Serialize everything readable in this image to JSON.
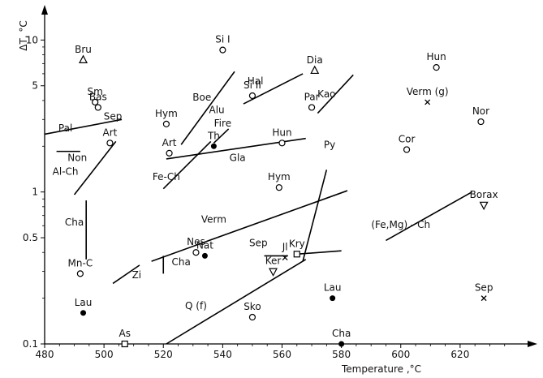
{
  "chart_data": {
    "type": "scatter",
    "xlabel": "Temperature ,°C",
    "ylabel": "ΔT, °C",
    "y_scale": "log",
    "xlim": [
      480,
      640
    ],
    "ylim": [
      0.1,
      13
    ],
    "x_ticks": [
      480,
      500,
      520,
      540,
      560,
      580,
      600,
      620
    ],
    "y_ticks": [
      {
        "value": 0.1,
        "label": "0.1"
      },
      {
        "value": 0.5,
        "label": "0.5"
      },
      {
        "value": 1,
        "label": "1"
      },
      {
        "value": 5,
        "label": "5"
      },
      {
        "value": 10,
        "label": "10"
      }
    ],
    "points": [
      {
        "label": "Bru",
        "x": 493,
        "y": 7.4,
        "marker": "triangle"
      },
      {
        "label": "Sm",
        "x": 497,
        "y": 3.9,
        "marker": "circle-open"
      },
      {
        "label": "Bas",
        "x": 498,
        "y": 3.6,
        "marker": "circle-open"
      },
      {
        "label": "Art",
        "x": 502,
        "y": 2.1,
        "marker": "circle-open"
      },
      {
        "label": "Mn-C",
        "x": 492,
        "y": 0.29,
        "marker": "circle-open"
      },
      {
        "label": "Lau",
        "x": 493,
        "y": 0.16,
        "marker": "circle-filled"
      },
      {
        "label": "As",
        "x": 507,
        "y": 0.1,
        "marker": "square"
      },
      {
        "label": "Hym",
        "x": 521,
        "y": 2.8,
        "marker": "circle-open"
      },
      {
        "label": "Art",
        "x": 522,
        "y": 1.8,
        "marker": "circle-open"
      },
      {
        "label": "Nes",
        "x": 531,
        "y": 0.4,
        "marker": "circle-open"
      },
      {
        "label": "Nat",
        "x": 534,
        "y": 0.38,
        "marker": "circle-filled"
      },
      {
        "label": "Th",
        "x": 537,
        "y": 2.0,
        "marker": "circle-filled"
      },
      {
        "label": "Si I",
        "x": 540,
        "y": 8.6,
        "marker": "circle-open"
      },
      {
        "label": "Si II",
        "x": 550,
        "y": 4.3,
        "marker": "circle-open"
      },
      {
        "label": "Hun",
        "x": 560,
        "y": 2.1,
        "marker": "circle-open"
      },
      {
        "label": "Hym",
        "x": 559,
        "y": 1.07,
        "marker": "circle-open"
      },
      {
        "label": "Par",
        "x": 570,
        "y": 3.6,
        "marker": "circle-open"
      },
      {
        "label": "Dia",
        "x": 571,
        "y": 6.3,
        "marker": "triangle"
      },
      {
        "label": "Kry",
        "x": 565,
        "y": 0.39,
        "marker": "square"
      },
      {
        "label": "Jl",
        "x": 561,
        "y": 0.37,
        "marker": "x"
      },
      {
        "label": "Ker",
        "x": 557,
        "y": 0.3,
        "marker": "triangle-down"
      },
      {
        "label": "Sko",
        "x": 550,
        "y": 0.15,
        "marker": "circle-open"
      },
      {
        "label": "Lau",
        "x": 577,
        "y": 0.2,
        "marker": "circle-filled"
      },
      {
        "label": "Cha",
        "x": 580,
        "y": 0.1,
        "marker": "circle-filled"
      },
      {
        "label": "Hun",
        "x": 612,
        "y": 6.6,
        "marker": "circle-open"
      },
      {
        "label": "Verm (g)",
        "x": 609,
        "y": 3.9,
        "marker": "x"
      },
      {
        "label": "Nor",
        "x": 627,
        "y": 2.9,
        "marker": "circle-open"
      },
      {
        "label": "Cor",
        "x": 602,
        "y": 1.9,
        "marker": "circle-open"
      },
      {
        "label": "Borax",
        "x": 628,
        "y": 0.82,
        "marker": "triangle-down"
      },
      {
        "label": "Sep",
        "x": 628,
        "y": 0.2,
        "marker": "x"
      },
      {
        "label": "Non",
        "x": 491,
        "y": 1.6,
        "marker": "none"
      },
      {
        "label": "Pal",
        "x": 487,
        "y": 2.5,
        "marker": "none"
      },
      {
        "label": "Sep",
        "x": 503,
        "y": 3.0,
        "marker": "none"
      },
      {
        "label": "Boe",
        "x": 533,
        "y": 4.0,
        "marker": "none"
      },
      {
        "label": "Alu",
        "x": 538,
        "y": 3.3,
        "marker": "none"
      },
      {
        "label": "Fire",
        "x": 540,
        "y": 2.7,
        "marker": "none"
      },
      {
        "label": "Hal",
        "x": 551,
        "y": 5.1,
        "marker": "none"
      },
      {
        "label": "Kao",
        "x": 575,
        "y": 4.2,
        "marker": "none"
      },
      {
        "label": "Gla",
        "x": 545,
        "y": 1.6,
        "marker": "none"
      },
      {
        "label": "Fe-Ch",
        "x": 521,
        "y": 1.2,
        "marker": "none"
      },
      {
        "label": "Al-Ch",
        "x": 487,
        "y": 1.3,
        "marker": "none"
      },
      {
        "label": "Cha",
        "x": 490,
        "y": 0.6,
        "marker": "none"
      },
      {
        "label": "Cha",
        "x": 526,
        "y": 0.33,
        "marker": "none"
      },
      {
        "label": "Zi",
        "x": 511,
        "y": 0.27,
        "marker": "none"
      },
      {
        "label": "Verm",
        "x": 537,
        "y": 0.63,
        "marker": "none"
      },
      {
        "label": "Sep",
        "x": 552,
        "y": 0.44,
        "marker": "none"
      },
      {
        "label": "Q (f)",
        "x": 531,
        "y": 0.17,
        "marker": "none"
      },
      {
        "label": "Py",
        "x": 576,
        "y": 1.95,
        "marker": "none"
      },
      {
        "label": "(Fe,Mg) - Ch",
        "x": 600,
        "y": 0.58,
        "marker": "none"
      }
    ],
    "lines": [
      {
        "label": "Pal",
        "x1": 480,
        "y1": 2.4,
        "x2": 506,
        "y2": 3.0
      },
      {
        "label": "Non",
        "x1": 484,
        "y1": 1.85,
        "x2": 492,
        "y2": 1.85
      },
      {
        "label": "Al-Ch",
        "x1": 490,
        "y1": 0.96,
        "x2": 504,
        "y2": 2.15
      },
      {
        "label": "Cha",
        "x1": 494,
        "y1": 0.36,
        "x2": 494,
        "y2": 0.88
      },
      {
        "label": "Zi",
        "x1": 503,
        "y1": 0.25,
        "x2": 512,
        "y2": 0.33
      },
      {
        "label": "Cha",
        "x1": 520,
        "y1": 0.29,
        "x2": 520,
        "y2": 0.38
      },
      {
        "label": "Boe",
        "x1": 526,
        "y1": 2.05,
        "x2": 544,
        "y2": 6.2
      },
      {
        "label": "Fe-Ch",
        "x1": 520,
        "y1": 1.05,
        "x2": 536,
        "y2": 2.15
      },
      {
        "label": "Gla",
        "x1": 521,
        "y1": 1.65,
        "x2": 568,
        "y2": 2.25
      },
      {
        "label": "Fire",
        "x1": 537,
        "y1": 2.1,
        "x2": 542,
        "y2": 2.6
      },
      {
        "label": "Hal",
        "x1": 547,
        "y1": 3.8,
        "x2": 567,
        "y2": 6.0
      },
      {
        "label": "Kao",
        "x1": 572,
        "y1": 3.3,
        "x2": 584,
        "y2": 5.9
      },
      {
        "label": "Verm",
        "x1": 516,
        "y1": 0.35,
        "x2": 582,
        "y2": 1.02
      },
      {
        "label": "Sep",
        "x1": 554,
        "y1": 0.38,
        "x2": 562,
        "y2": 0.38
      },
      {
        "label": "Kry",
        "x1": 565,
        "y1": 0.39,
        "x2": 580,
        "y2": 0.41
      },
      {
        "label": "Py",
        "x1": 567,
        "y1": 0.35,
        "x2": 575,
        "y2": 1.4
      },
      {
        "label": "Q (f)",
        "x1": 521,
        "y1": 0.1,
        "x2": 568,
        "y2": 0.36
      },
      {
        "label": "(Fe,Mg) - Ch",
        "x1": 595,
        "y1": 0.48,
        "x2": 624,
        "y2": 1.0
      }
    ]
  }
}
